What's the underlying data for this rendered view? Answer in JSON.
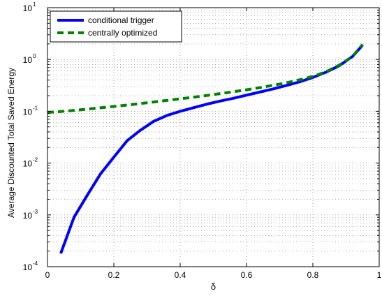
{
  "chart_data": {
    "type": "line",
    "xlabel": "δ",
    "ylabel": "Average Discounted Total Saved Energy",
    "y_scale": "log",
    "xlim": [
      0,
      1
    ],
    "ylim": [
      0.0001,
      10
    ],
    "grid": true,
    "legend_position": "top-left",
    "x_ticks": [
      0,
      0.2,
      0.4,
      0.6,
      0.8,
      1
    ],
    "x_tick_labels": [
      "0",
      "0.2",
      "0.4",
      "0.6",
      "0.8",
      "1"
    ],
    "y_ticks": [
      0.0001,
      0.001,
      0.01,
      0.1,
      1,
      10
    ],
    "y_tick_labels": [
      {
        "base": "10",
        "exp": "-4"
      },
      {
        "base": "10",
        "exp": "-3"
      },
      {
        "base": "10",
        "exp": "-2"
      },
      {
        "base": "10",
        "exp": "-1"
      },
      {
        "base": "10",
        "exp": "0"
      },
      {
        "base": "10",
        "exp": "1"
      }
    ],
    "series": [
      {
        "name": "conditional trigger",
        "color": "#0000ff",
        "style": "solid",
        "x": [
          0.04,
          0.08,
          0.12,
          0.16,
          0.2,
          0.24,
          0.28,
          0.32,
          0.36,
          0.4,
          0.44,
          0.48,
          0.52,
          0.56,
          0.6,
          0.64,
          0.68,
          0.72,
          0.76,
          0.8,
          0.84,
          0.88,
          0.92,
          0.95
        ],
        "y": [
          0.00018,
          0.0009,
          0.0024,
          0.0062,
          0.013,
          0.027,
          0.043,
          0.064,
          0.083,
          0.1,
          0.117,
          0.137,
          0.157,
          0.178,
          0.205,
          0.235,
          0.27,
          0.315,
          0.37,
          0.45,
          0.57,
          0.76,
          1.15,
          1.9
        ]
      },
      {
        "name": "centrally optimized",
        "color": "#008000",
        "style": "dashed",
        "x": [
          0.0,
          0.04,
          0.08,
          0.12,
          0.16,
          0.2,
          0.24,
          0.28,
          0.32,
          0.36,
          0.4,
          0.44,
          0.48,
          0.52,
          0.56,
          0.6,
          0.64,
          0.68,
          0.72,
          0.76,
          0.8,
          0.84,
          0.88,
          0.92,
          0.95
        ],
        "y": [
          0.095,
          0.099,
          0.104,
          0.11,
          0.117,
          0.124,
          0.132,
          0.141,
          0.151,
          0.162,
          0.174,
          0.187,
          0.202,
          0.219,
          0.238,
          0.26,
          0.286,
          0.317,
          0.355,
          0.405,
          0.47,
          0.58,
          0.78,
          1.15,
          1.95
        ]
      }
    ]
  }
}
